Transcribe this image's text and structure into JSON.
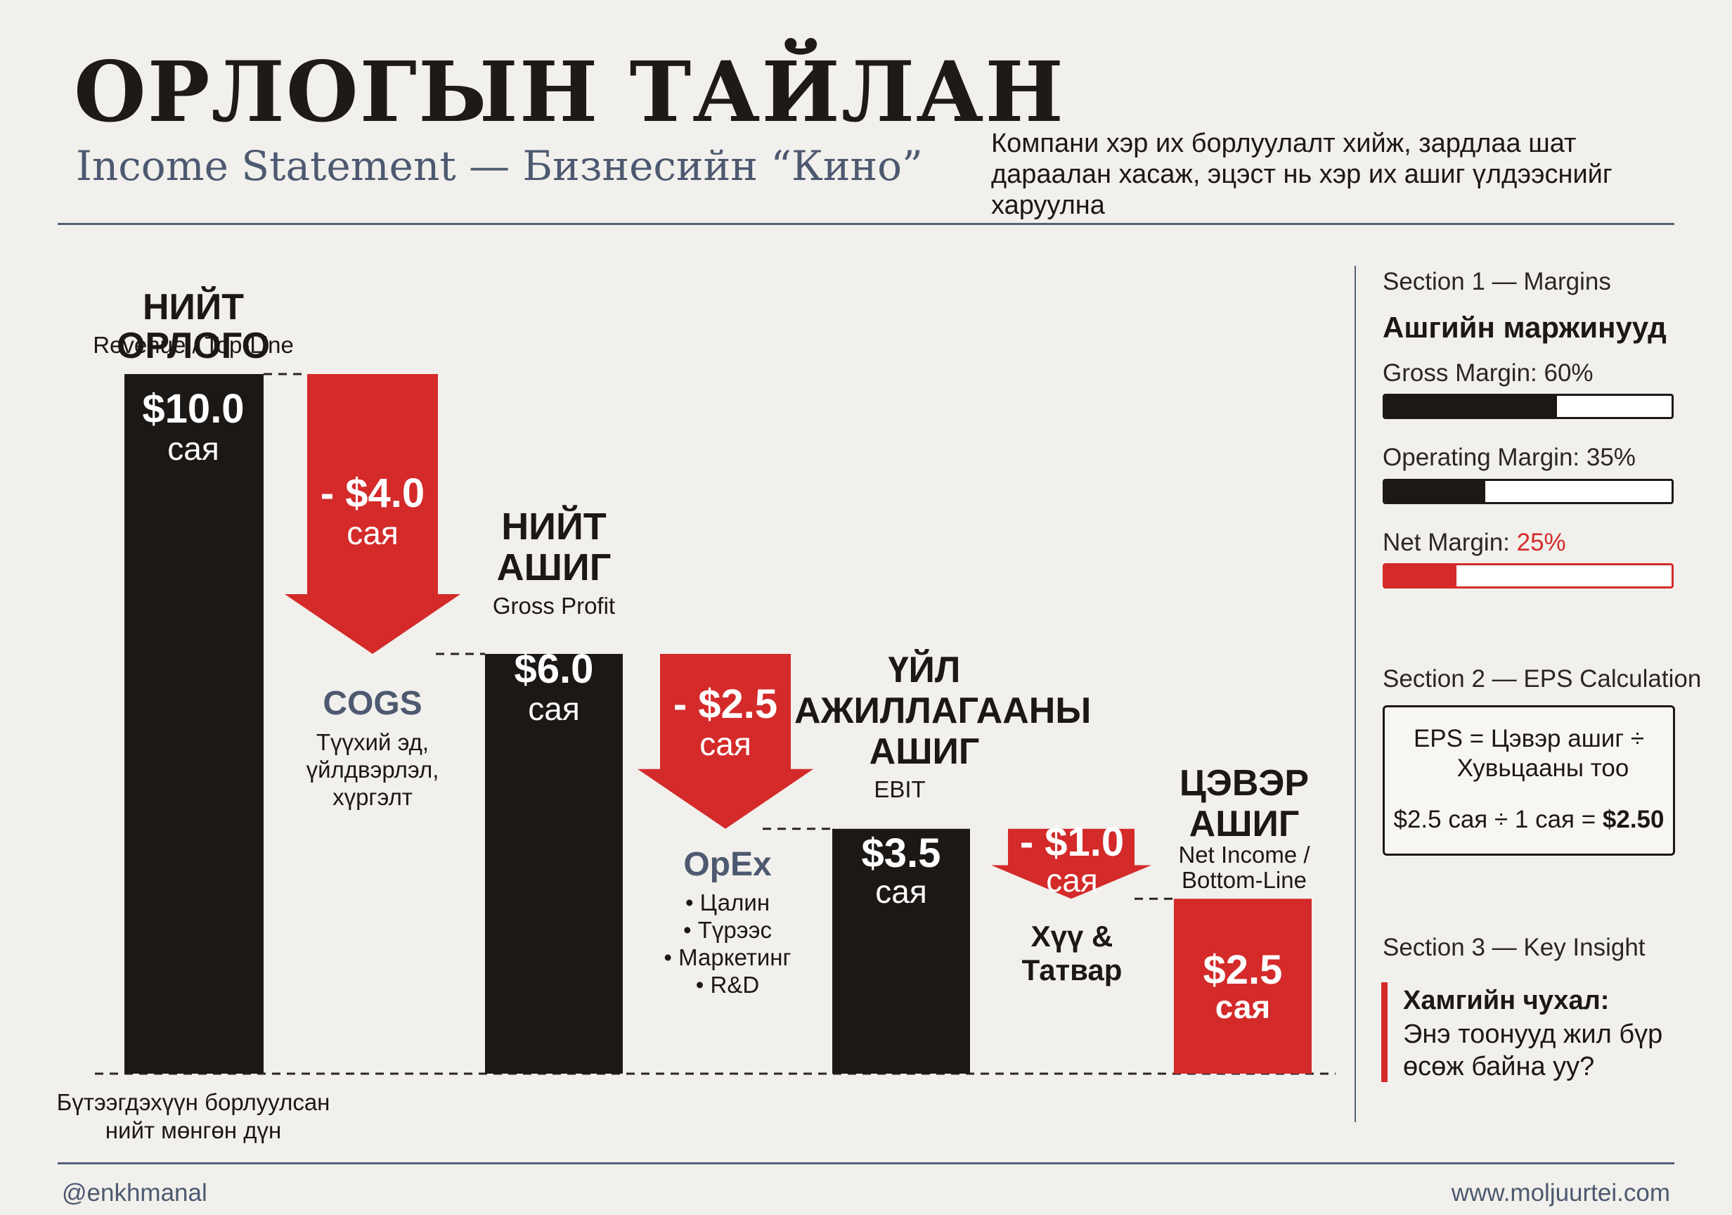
{
  "header": {
    "title": "ОРЛОГЫН ТАЙЛАН",
    "subtitle": "Income Statement — Бизнесийн “Кино”",
    "description": "Компани хэр их борлуулалт хийж, зардлаа шат дараалан хасаж, эцэст нь хэр их ашиг үлдээснийг харуулна"
  },
  "chart_data": {
    "type": "waterfall",
    "unit": "сая",
    "ylim": [
      0,
      10
    ],
    "totals": [
      {
        "key": "revenue",
        "title": "НИЙТ ОРЛОГО",
        "subtitle": "Revenue / Top-Line",
        "value": 10.0,
        "value_label": "$10.0",
        "unit": "сая",
        "color": "#1c1816",
        "note_lines": [
          "Бүтээгдэхүүн борлуулсан",
          "нийт мөнгөн дүн"
        ]
      },
      {
        "key": "gross_profit",
        "title_lines": [
          "НИЙТ",
          "АШИГ"
        ],
        "subtitle": "Gross Profit",
        "value": 6.0,
        "value_label": "$6.0",
        "unit": "сая",
        "color": "#1c1816"
      },
      {
        "key": "ebit",
        "title_lines": [
          "ҮЙЛ",
          "АЖИЛЛАГААНЫ",
          "АШИГ"
        ],
        "subtitle": "EBIT",
        "value": 3.5,
        "value_label": "$3.5",
        "unit": "сая",
        "color": "#1c1816"
      },
      {
        "key": "net_income",
        "title_lines": [
          "ЦЭВЭР",
          "АШИГ"
        ],
        "subtitle_lines": [
          "Net Income /",
          "Bottom-Line"
        ],
        "value": 2.5,
        "value_label": "$2.5",
        "unit": "сая",
        "color": "#d42a2a"
      }
    ],
    "deductions": [
      {
        "key": "cogs",
        "from": 10.0,
        "to": 6.0,
        "value": -4.0,
        "value_label": "- $4.0",
        "unit": "сая",
        "name": "COGS",
        "detail_lines": [
          "Түүхий эд,",
          "үйлдвэрлэл,",
          "хүргэлт"
        ]
      },
      {
        "key": "opex",
        "from": 6.0,
        "to": 3.5,
        "value": -2.5,
        "value_label": "- $2.5",
        "unit": "сая",
        "name": "OpEx",
        "detail_lines": [
          "• Цалин",
          "• Түрээс",
          "• Маркетинг",
          "• R&D"
        ]
      },
      {
        "key": "interest_tax",
        "from": 3.5,
        "to": 2.5,
        "value": -1.0,
        "value_label": "- $1.0",
        "unit": "сая",
        "name_lines": [
          "Хүү &",
          "Татвар"
        ]
      }
    ]
  },
  "sidebar": {
    "margins": {
      "section_label": "Section 1 — Margins",
      "heading": "Ашгийн маржинууд",
      "items": [
        {
          "prefix": "Gross Margin: ",
          "value_text": "60%",
          "value": 60,
          "color": "#1c1816"
        },
        {
          "prefix": "Operating Margin: ",
          "value_text": "35%",
          "value": 35,
          "color": "#1c1816"
        },
        {
          "prefix": "Net Margin: ",
          "value_text": "25%",
          "value": 25,
          "color": "#d42a2a"
        }
      ]
    },
    "eps": {
      "section_label": "Section 2 — EPS Calculation",
      "formula_line1": "EPS = Цэвэр ашиг ÷",
      "formula_line2": "Хувьцааны тоо",
      "calc_prefix": "$2.5 сая ÷ 1 сая = ",
      "calc_result": "$2.50"
    },
    "insight": {
      "section_label": "Section 3 — Key Insight",
      "heading": "Хамгийн чухал:",
      "text_line1": "Энэ тоонууд жил бүр",
      "text_line2": "өсөж байна уу?"
    }
  },
  "footer": {
    "handle": "@enkhmanal",
    "website": "www.moljuurtei.com"
  },
  "colors": {
    "dark": "#1c1816",
    "red": "#d42a2a",
    "slate": "#4d5970",
    "background": "#f1f0ec"
  }
}
